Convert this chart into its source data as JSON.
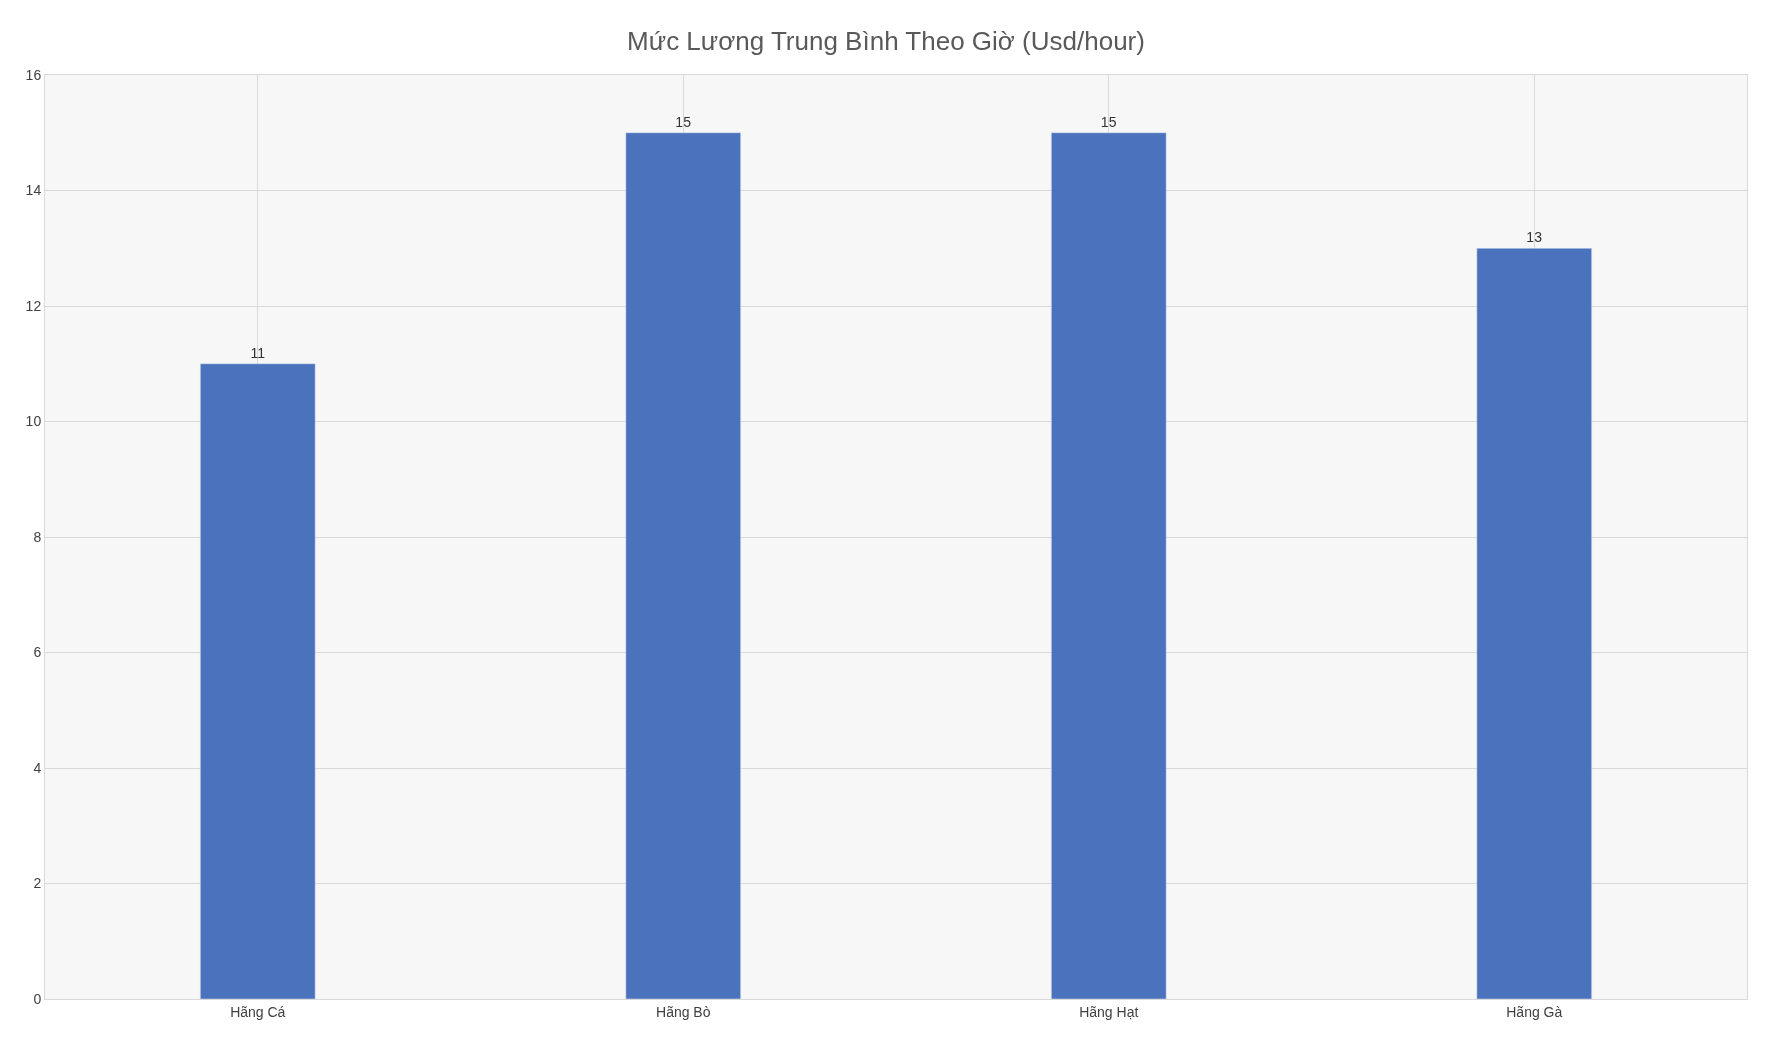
{
  "chart_data": {
    "type": "bar",
    "title": "Mức Lương Trung Bình Theo Giờ (Usd/hour)",
    "categories": [
      "Hãng Cá",
      "Hãng Bò",
      "Hãng Hạt",
      "Hãng Gà"
    ],
    "values": [
      11,
      15,
      15,
      13
    ],
    "color": "#4a72bd",
    "ylim": [
      0,
      16
    ],
    "yticks": [
      0,
      2,
      4,
      6,
      8,
      10,
      12,
      14,
      16
    ],
    "grid": true,
    "data_labels": true
  }
}
